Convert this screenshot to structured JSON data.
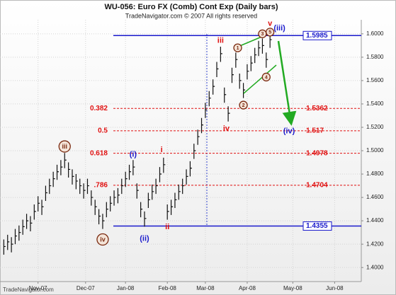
{
  "chart_data": {
    "type": "ohlc",
    "title": "WU-056:  Euro FX (Comb) Cont Exp  (Daily bars)",
    "subtitle": "TradeNavigator.com © 2007 All rights reserved",
    "source": "TradeNavigator.com",
    "bar_color": "#111111",
    "grid": true,
    "x": [
      0,
      2,
      4,
      6,
      8,
      10,
      12,
      14,
      16,
      18,
      20,
      22,
      24,
      26,
      28,
      30,
      32,
      34,
      36,
      38,
      40,
      42,
      44,
      46,
      48,
      50,
      52,
      54,
      56,
      58,
      60,
      62,
      64,
      66,
      68,
      70,
      72,
      74,
      76,
      78,
      80,
      82,
      84,
      86,
      88,
      90,
      92,
      94,
      96,
      98,
      100,
      102,
      104,
      106,
      108,
      110,
      112,
      114,
      116,
      118,
      120,
      122,
      124,
      126,
      128,
      130,
      132,
      134,
      136,
      138,
      140
    ],
    "high": [
      1.424,
      1.428,
      1.426,
      1.433,
      1.436,
      1.441,
      1.446,
      1.444,
      1.454,
      1.461,
      1.458,
      1.47,
      1.476,
      1.482,
      1.488,
      1.492,
      1.498,
      1.49,
      1.484,
      1.48,
      1.476,
      1.472,
      1.476,
      1.466,
      1.458,
      1.45,
      1.446,
      1.456,
      1.461,
      1.466,
      1.468,
      1.476,
      1.482,
      1.488,
      1.492,
      1.472,
      1.456,
      1.448,
      1.464,
      1.471,
      1.476,
      1.486,
      1.494,
      1.454,
      1.458,
      1.464,
      1.471,
      1.476,
      1.484,
      1.491,
      1.506,
      1.518,
      1.528,
      1.541,
      1.551,
      1.561,
      1.576,
      1.589,
      1.554,
      1.538,
      1.571,
      1.584,
      1.566,
      1.558,
      1.574,
      1.581,
      1.588,
      1.594,
      1.596,
      1.584,
      1.601
    ],
    "low": [
      1.411,
      1.415,
      1.413,
      1.42,
      1.423,
      1.428,
      1.433,
      1.431,
      1.441,
      1.448,
      1.445,
      1.457,
      1.463,
      1.469,
      1.475,
      1.479,
      1.485,
      1.477,
      1.471,
      1.467,
      1.463,
      1.459,
      1.463,
      1.453,
      1.445,
      1.437,
      1.433,
      1.443,
      1.448,
      1.453,
      1.455,
      1.463,
      1.469,
      1.475,
      1.479,
      1.459,
      1.443,
      1.435,
      1.451,
      1.458,
      1.463,
      1.473,
      1.481,
      1.441,
      1.445,
      1.451,
      1.458,
      1.463,
      1.471,
      1.478,
      1.493,
      1.505,
      1.515,
      1.528,
      1.538,
      1.548,
      1.563,
      1.576,
      1.541,
      1.525,
      1.558,
      1.571,
      1.553,
      1.545,
      1.561,
      1.568,
      1.575,
      1.581,
      1.583,
      1.571,
      1.588
    ],
    "close": [
      1.418,
      1.422,
      1.42,
      1.427,
      1.43,
      1.435,
      1.44,
      1.438,
      1.448,
      1.455,
      1.452,
      1.464,
      1.47,
      1.476,
      1.482,
      1.486,
      1.492,
      1.484,
      1.478,
      1.474,
      1.47,
      1.466,
      1.47,
      1.46,
      1.452,
      1.444,
      1.44,
      1.45,
      1.455,
      1.46,
      1.462,
      1.47,
      1.476,
      1.482,
      1.486,
      1.466,
      1.45,
      1.442,
      1.458,
      1.465,
      1.47,
      1.48,
      1.488,
      1.448,
      1.452,
      1.458,
      1.465,
      1.47,
      1.478,
      1.485,
      1.5,
      1.512,
      1.522,
      1.535,
      1.545,
      1.555,
      1.57,
      1.583,
      1.548,
      1.532,
      1.565,
      1.578,
      1.56,
      1.552,
      1.568,
      1.575,
      1.582,
      1.588,
      1.59,
      1.578,
      1.595
    ],
    "xlim": [
      -2,
      188
    ],
    "xticks": [
      {
        "value": 18,
        "label": "Nov-07"
      },
      {
        "value": 43,
        "label": "Dec-07"
      },
      {
        "value": 64,
        "label": "Jan-08"
      },
      {
        "value": 86,
        "label": "Feb-08"
      },
      {
        "value": 106,
        "label": "Mar-08"
      },
      {
        "value": 128,
        "label": "Apr-08"
      },
      {
        "value": 152,
        "label": "May-08"
      },
      {
        "value": 174,
        "label": "Jun-08"
      }
    ],
    "ylim": [
      1.388,
      1.612
    ],
    "yticks": [
      {
        "value": 1.4,
        "label": "1.4000"
      },
      {
        "value": 1.42,
        "label": "1.4200"
      },
      {
        "value": 1.44,
        "label": "1.4400"
      },
      {
        "value": 1.46,
        "label": "1.4600"
      },
      {
        "value": 1.48,
        "label": "1.4800"
      },
      {
        "value": 1.5,
        "label": "1.5000"
      },
      {
        "value": 1.52,
        "label": "1.5200"
      },
      {
        "value": 1.54,
        "label": "1.5400"
      },
      {
        "value": 1.56,
        "label": "1.5600"
      },
      {
        "value": 1.58,
        "label": "1.5800"
      },
      {
        "value": 1.6,
        "label": "1.6000"
      }
    ],
    "levels": [
      {
        "value": 1.5985,
        "color": "#1a1acc",
        "dashed": false
      },
      {
        "value": 1.5362,
        "ratio": "0.382",
        "color": "#e01010",
        "dashed": true
      },
      {
        "value": 1.517,
        "ratio": "0.5",
        "color": "#e01010",
        "dashed": true
      },
      {
        "value": 1.4978,
        "ratio": "0.618",
        "color": "#e01010",
        "dashed": true
      },
      {
        "value": 1.4704,
        "ratio": ".786",
        "color": "#e01010",
        "dashed": true
      },
      {
        "value": 1.4355,
        "color": "#1a1acc",
        "dashed": false
      }
    ],
    "wave_labels": [
      {
        "text": "iii",
        "x": 32,
        "y": 1.5036,
        "color": "#7a2a10",
        "circled": true
      },
      {
        "text": "iv",
        "x": 52,
        "y": 1.424,
        "color": "#7a2a10",
        "circled": true
      },
      {
        "text": "(i)",
        "x": 68,
        "y": 1.497,
        "color": "#1a1acc",
        "circled": false
      },
      {
        "text": "(ii)",
        "x": 74,
        "y": 1.425,
        "color": "#1a1acc",
        "circled": false
      },
      {
        "text": "i",
        "x": 83,
        "y": 1.501,
        "color": "#e01010",
        "circled": false
      },
      {
        "text": "ii",
        "x": 86,
        "y": 1.435,
        "color": "#e01010",
        "circled": false
      },
      {
        "text": "iii",
        "x": 114,
        "y": 1.5945,
        "color": "#e01010",
        "circled": false
      },
      {
        "text": "iv",
        "x": 117,
        "y": 1.519,
        "color": "#e01010",
        "circled": false
      },
      {
        "text": "v",
        "x": 140,
        "y": 1.609,
        "color": "#e01010",
        "circled": false
      },
      {
        "text": "(iii)",
        "x": 145,
        "y": 1.605,
        "color": "#1a1acc",
        "circled": false
      },
      {
        "text": "(iv)",
        "x": 150,
        "y": 1.517,
        "color": "#1a1acc",
        "circled": false
      },
      {
        "text": "1",
        "x": 123,
        "y": 1.588,
        "color": "#7a2a10",
        "circled": true
      },
      {
        "text": "2",
        "x": 126,
        "y": 1.539,
        "color": "#7a2a10",
        "circled": true
      },
      {
        "text": "3",
        "x": 136,
        "y": 1.6,
        "color": "#7a2a10",
        "circled": true
      },
      {
        "text": "4",
        "x": 138,
        "y": 1.563,
        "color": "#7a2a10",
        "circled": true
      },
      {
        "text": "5",
        "x": 140,
        "y": 1.6015,
        "color": "#7a2a10",
        "circled": true
      }
    ]
  }
}
